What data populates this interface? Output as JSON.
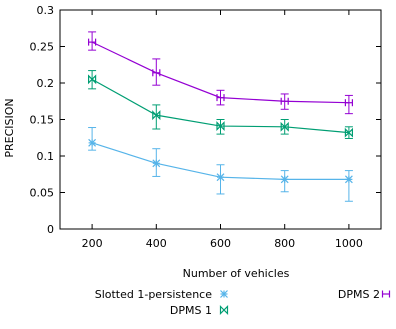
{
  "chart_data": {
    "type": "line",
    "title": "",
    "xlabel": "Number of vehicles",
    "ylabel": "PRECISION",
    "x": [
      200,
      400,
      600,
      800,
      1000
    ],
    "xlim": [
      100,
      1100
    ],
    "ylim": [
      0,
      0.3
    ],
    "x_ticks": [
      "200",
      "400",
      "600",
      "800",
      "1000"
    ],
    "y_ticks": [
      "0",
      "0.05",
      "0.1",
      "0.15",
      "0.2",
      "0.25",
      "0.3"
    ],
    "grid": false,
    "legend_position": "bottom",
    "series": [
      {
        "name": "Slotted 1-persistence",
        "color": "#56b4e9",
        "marker": "asterisk",
        "values": [
          0.118,
          0.09,
          0.071,
          0.068,
          0.068
        ],
        "err_low": [
          0.108,
          0.072,
          0.048,
          0.051,
          0.038
        ],
        "err_high": [
          0.139,
          0.11,
          0.088,
          0.08,
          0.08
        ]
      },
      {
        "name": "DPMS 1",
        "color": "#009e73",
        "marker": "bowtie",
        "values": [
          0.205,
          0.156,
          0.141,
          0.14,
          0.132
        ],
        "err_low": [
          0.192,
          0.137,
          0.13,
          0.13,
          0.124
        ],
        "err_high": [
          0.217,
          0.17,
          0.15,
          0.15,
          0.14
        ]
      },
      {
        "name": "DPMS 2",
        "color": "#9400d3",
        "marker": "h-bar",
        "values": [
          0.256,
          0.214,
          0.18,
          0.175,
          0.173
        ],
        "err_low": [
          0.245,
          0.197,
          0.17,
          0.164,
          0.158
        ],
        "err_high": [
          0.27,
          0.233,
          0.19,
          0.185,
          0.183
        ]
      }
    ]
  }
}
